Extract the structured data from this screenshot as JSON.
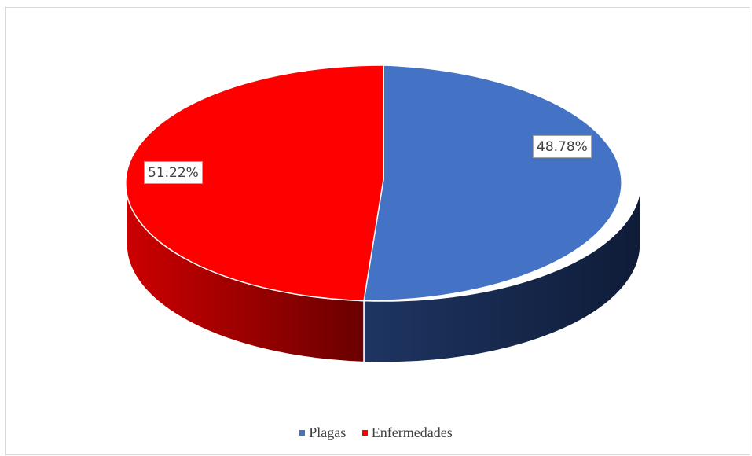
{
  "chart_data": {
    "type": "pie",
    "style": "3d",
    "title": "",
    "categories": [
      "Plagas",
      "Enfermedades"
    ],
    "values": [
      48.78,
      51.22
    ],
    "data_labels": [
      "48.78%",
      "51.22%"
    ],
    "colors": [
      "#4472C4",
      "#FF0000"
    ],
    "side_colors": [
      [
        "#1E3562",
        "#0F1C38"
      ],
      [
        "#CC0000",
        "#6A0000"
      ]
    ],
    "legend_placement": "bottom"
  }
}
